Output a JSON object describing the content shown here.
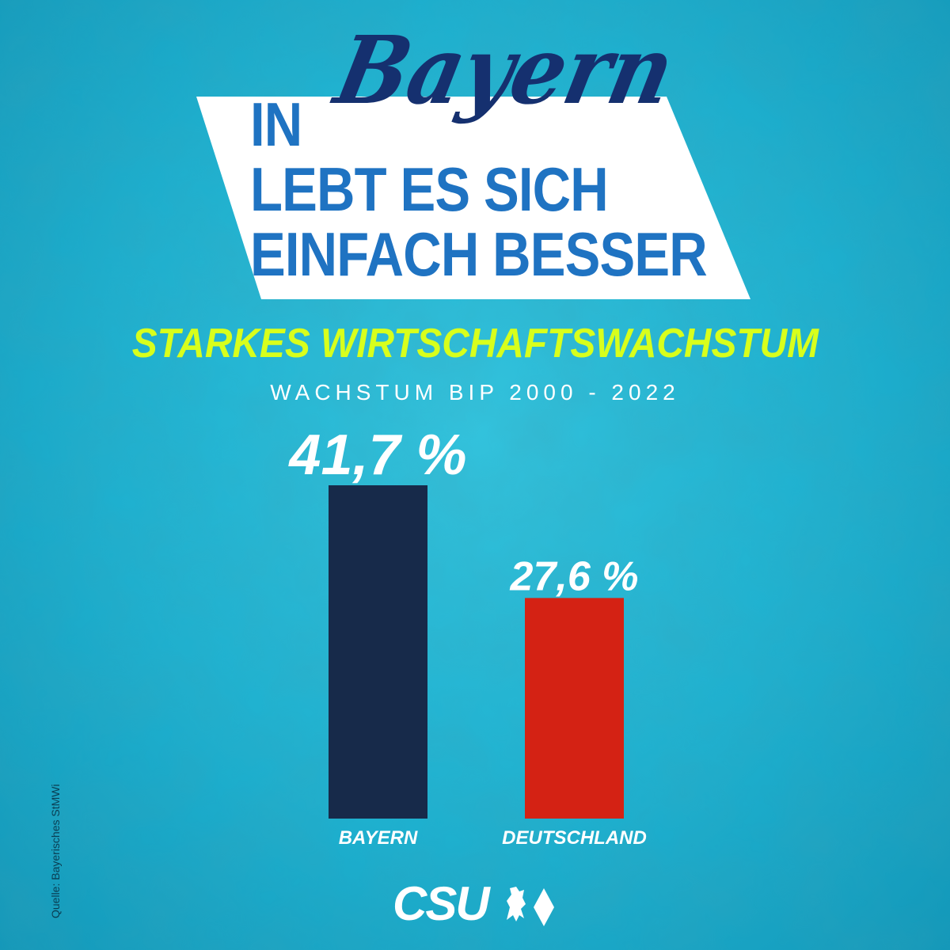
{
  "headline": {
    "line1_prefix": "IN",
    "script_word": "Bayern",
    "line2": "LEBT ES SICH",
    "line3": "EINFACH BESSER"
  },
  "subtitle": "STARKES WIRTSCHAFTSWACHSTUM",
  "caption": "WACHSTUM BIP 2000 - 2022",
  "chart_data": {
    "type": "bar",
    "categories": [
      "BAYERN",
      "DEUTSCHLAND"
    ],
    "values": [
      41.7,
      27.6
    ],
    "value_labels": [
      "41,7 %",
      "27,6 %"
    ],
    "colors": [
      "#172a4a",
      "#d42214"
    ],
    "title": "STARKES WIRTSCHAFTSWACHSTUM",
    "subtitle": "WACHSTUM BIP 2000 - 2022",
    "ylim": [
      0,
      50
    ],
    "grid": false,
    "legend": "none"
  },
  "source": "Quelle: Bayerisches StMWi",
  "logo": {
    "text": "CSU",
    "icons": [
      "lion-icon",
      "rhombus-icon"
    ]
  },
  "colors": {
    "background": "#22b4d2",
    "headline": "#1f73c2",
    "script": "#15306f",
    "subtitle": "#d8ff1c"
  }
}
